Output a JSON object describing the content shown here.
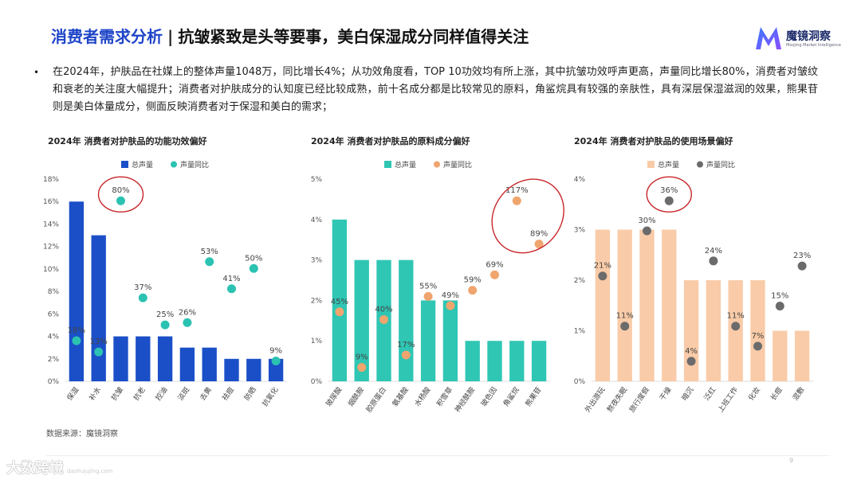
{
  "header": {
    "title_accent": "消费者需求分析",
    "title_sep": "|",
    "title_rest": "抗皱紧致是头等要事，美白保湿成分同样值得关注"
  },
  "logo": {
    "name": "魔镜洞察",
    "sub": "Moojing Market Intelligence"
  },
  "summary": {
    "bullet": "•",
    "text": "在2024年，护肤品在社媒上的整体声量1048万，同比增长4%；从功效角度看，TOP 10功效均有所上涨，其中抗皱功效呼声更高，声量同比增长80%，消费者对皱纹和衰老的关注度大幅提升；消费者对护肤成分的认知度已经比较成熟，前十名成分都是比较常见的原料，角鲨烷具有较强的亲肤性，具有深层保湿滋润的效果，熊果苷则是美白体量成分，侧面反映消费者对于保湿和美白的需求；"
  },
  "colors": {
    "accent": "#1e44c8",
    "highlight_circle": "#c8262b",
    "axis_text": "#555555"
  },
  "chart_data": [
    {
      "type": "bar",
      "title": "2024年 消费者对护肤品的功能功效偏好",
      "legend": [
        "总声量",
        "声量同比"
      ],
      "bar_color": "#1b4fc8",
      "dot_color": "#2bc2b2",
      "categories": [
        "保湿",
        "补水",
        "抗皱",
        "抗老",
        "控油",
        "淡斑",
        "去黄",
        "祛痘",
        "防晒",
        "抗氧化"
      ],
      "values": [
        16,
        13,
        4,
        4,
        4,
        3,
        3,
        2,
        2,
        2
      ],
      "ylim": [
        0,
        18
      ],
      "yticks": [
        0,
        2,
        4,
        6,
        8,
        10,
        12,
        14,
        16,
        18
      ],
      "ytick_labels": [
        "0%",
        "2%",
        "4%",
        "6%",
        "8%",
        "10%",
        "12%",
        "14%",
        "16%",
        "18%"
      ],
      "yoy": [
        18,
        13,
        80,
        37,
        25,
        26,
        53,
        41,
        50,
        9
      ],
      "yoy_labels": [
        "18%",
        "13%",
        "80%",
        "37%",
        "25%",
        "26%",
        "53%",
        "41%",
        "50%",
        "9%"
      ],
      "highlight_index": [
        2
      ]
    },
    {
      "type": "bar",
      "title": "2024年 消费者对护肤品的原料成分偏好",
      "legend": [
        "总声量",
        "声量同比"
      ],
      "bar_color": "#2fc6b4",
      "dot_color": "#f0a56e",
      "categories": [
        "玻尿酸",
        "烟酰胺",
        "胶原蛋白",
        "氨基酸",
        "水杨酸",
        "积雪草",
        "神经酰胺",
        "玻色因",
        "角鲨烷",
        "熊果苷"
      ],
      "values": [
        4,
        3,
        3,
        3,
        2,
        2,
        1,
        1,
        1,
        1
      ],
      "ylim": [
        0,
        5
      ],
      "yticks": [
        0,
        1,
        2,
        3,
        4,
        5
      ],
      "ytick_labels": [
        "0%",
        "1%",
        "2%",
        "3%",
        "4%",
        "5%"
      ],
      "yoy": [
        45,
        9,
        40,
        17,
        55,
        49,
        59,
        69,
        117,
        89
      ],
      "yoy_labels": [
        "45%",
        "9%",
        "40%",
        "17%",
        "55%",
        "49%",
        "59%",
        "69%",
        "117%",
        "89%"
      ],
      "highlight_index": [
        8,
        9
      ]
    },
    {
      "type": "bar",
      "title": "2024年 消费者对护肤品的使用场景偏好",
      "legend": [
        "总声量",
        "声量同比"
      ],
      "bar_color": "#f9cba8",
      "dot_color": "#6b6b6b",
      "categories": [
        "外出游玩",
        "熬夜失眠",
        "旅行度假",
        "干燥",
        "暗沉",
        "泛红",
        "上班工作",
        "化妆",
        "长痘",
        "混敷"
      ],
      "values": [
        3,
        3,
        3,
        3,
        2,
        2,
        2,
        2,
        1,
        1
      ],
      "ylim": [
        0,
        4
      ],
      "yticks": [
        0,
        1,
        2,
        3,
        4
      ],
      "ytick_labels": [
        "0%",
        "1%",
        "2%",
        "3%",
        "4%"
      ],
      "yoy": [
        21,
        11,
        30,
        36,
        4,
        24,
        11,
        7,
        15,
        23
      ],
      "yoy_labels": [
        "21%",
        "11%",
        "30%",
        "36%",
        "4%",
        "24%",
        "11%",
        "7%",
        "15%",
        "23%"
      ],
      "highlight_index": [
        3
      ]
    }
  ],
  "footer": {
    "source": "数据来源：魔镜洞察",
    "watermark": "大数跨境",
    "watermark_sub": "dashujujing.com",
    "page": "9"
  }
}
